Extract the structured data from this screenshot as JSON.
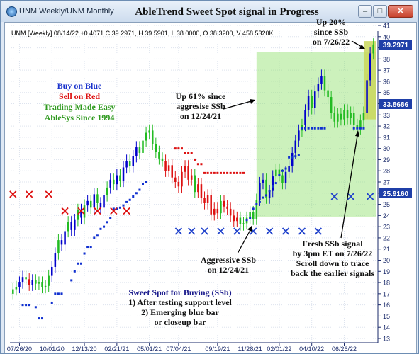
{
  "window": {
    "title": "UNM Weekly/UNM Monthly",
    "minimize_glyph": "–",
    "maximize_glyph": "□",
    "close_glyph": "✕"
  },
  "overlay_title": "AbleTrend Sweet Spot signal in Progress",
  "header_info": "UNM [Weekly] 08/14/22 +0.4071 C 39.2971, H 39.5901, L 38.0000, O 38.3200, V 458.5320K",
  "price_tags": {
    "last": "39.2971",
    "mid": "33.8686",
    "low": "25.9160"
  },
  "price_tag_colors": {
    "last": "#1f3fa8",
    "mid": "#1f3fa8",
    "low": "#1f3fa8"
  },
  "legend_text": {
    "buy": "Buy on Blue",
    "sell": "Sell on Red",
    "easy": "Trading Made Easy",
    "since": "AbleSys Since 1994"
  },
  "annotations": {
    "up61_l1": "Up 61% since",
    "up61_l2": "aggresise SSb",
    "up61_l3": "on 12/24/21",
    "up20_l1": "Up 20%",
    "up20_l2": "since SSb",
    "up20_l3": "on 7/26/22",
    "aggr_l1": "Aggressive SSb",
    "aggr_l2": "on 12/24/21",
    "fresh_l1": "Fresh SSb signal",
    "fresh_l2": "by 3pm ET on 7/26/22",
    "fresh_l3": "Scroll down to trace",
    "fresh_l4": "back the earlier signals",
    "sweet_title": "Sweet Spot for Buying (SSb)",
    "sweet_l1": "1) After testing support level",
    "sweet_l2": "2) Emerging blue bar",
    "sweet_l3": "or closeup bar"
  },
  "colors": {
    "up": "#0000cc",
    "down": "#dd1111",
    "neutral": "#22bb22",
    "stop_blue": "#1030d0",
    "stop_red": "#dd1111",
    "x_red": "#dd1111",
    "x_blue": "#2244cc",
    "highlight": "#8fe06a",
    "highlight_recent": "#c9d75a",
    "legend_blue": "#1a33cc",
    "legend_red": "#dd1111",
    "legend_green": "#2f9a1f"
  },
  "chart_data": {
    "type": "candlestick",
    "ylim": [
      13,
      41
    ],
    "y_ticks": [
      13,
      14,
      15,
      16,
      17,
      18,
      19,
      20,
      21,
      22,
      23,
      24,
      25,
      26,
      27,
      28,
      29,
      30,
      31,
      32,
      33,
      34,
      35,
      36,
      37,
      38,
      39,
      40,
      41
    ],
    "x_ticks": [
      "07/26/20",
      "10/01/20",
      "12/13/20",
      "02/21/21",
      "05/01/21",
      "07/04/21",
      "09/19/21",
      "11/28/21",
      "02/01/22",
      "04/10/22",
      "06/26/22"
    ],
    "x_tick_index": [
      2,
      12,
      22,
      32,
      42,
      51,
      63,
      73,
      82,
      92,
      102
    ],
    "x_count": 112,
    "candles_close": [
      17.4,
      17.6,
      18.0,
      18.5,
      18.3,
      17.8,
      18.2,
      17.9,
      18.0,
      17.6,
      17.7,
      18.6,
      19.4,
      20.6,
      21.8,
      21.4,
      22.6,
      23.4,
      22.7,
      23.6,
      24.5,
      23.8,
      24.9,
      25.3,
      24.7,
      25.9,
      25.1,
      24.7,
      25.8,
      26.5,
      27.2,
      26.8,
      27.6,
      27.1,
      28.3,
      28.9,
      28.4,
      29.3,
      30.1,
      29.6,
      30.7,
      31.4,
      31.6,
      30.4,
      29.7,
      29.1,
      28.9,
      28.0,
      28.5,
      27.4,
      27.0,
      26.6,
      27.9,
      28.4,
      27.2,
      27.6,
      26.1,
      26.8,
      25.6,
      25.1,
      25.8,
      24.1,
      24.6,
      24.2,
      25.3,
      24.8,
      24.6,
      24.0,
      23.5,
      23.8,
      23.2,
      23.3,
      23.8,
      24.3,
      23.7,
      25.4,
      26.9,
      27.2,
      25.6,
      26.2,
      27.5,
      28.1,
      27.6,
      26.9,
      27.9,
      28.4,
      29.6,
      30.7,
      31.6,
      32.1,
      33.4,
      34.7,
      33.6,
      35.1,
      35.8,
      36.5,
      35.2,
      34.6,
      33.2,
      32.4,
      33.1,
      32.6,
      33.4,
      32.7,
      33.2,
      32.1,
      31.8,
      32.5,
      33.2,
      36.1,
      38.5,
      39.3
    ],
    "candles_color": [
      "n",
      "n",
      "u",
      "u",
      "n",
      "d",
      "u",
      "n",
      "n",
      "n",
      "n",
      "n",
      "u",
      "u",
      "n",
      "u",
      "u",
      "n",
      "u",
      "u",
      "n",
      "u",
      "n",
      "u",
      "n",
      "u",
      "n",
      "u",
      "u",
      "n",
      "u",
      "n",
      "u",
      "n",
      "u",
      "u",
      "n",
      "u",
      "u",
      "n",
      "n",
      "n",
      "n",
      "n",
      "n",
      "n",
      "n",
      "d",
      "d",
      "d",
      "d",
      "d",
      "d",
      "d",
      "d",
      "d",
      "n",
      "d",
      "d",
      "d",
      "d",
      "d",
      "d",
      "d",
      "n",
      "d",
      "d",
      "d",
      "d",
      "d",
      "n",
      "n",
      "n",
      "n",
      "n",
      "n",
      "u",
      "u",
      "n",
      "u",
      "u",
      "n",
      "n",
      "n",
      "u",
      "u",
      "u",
      "u",
      "u",
      "n",
      "u",
      "u",
      "n",
      "u",
      "u",
      "u",
      "n",
      "n",
      "n",
      "n",
      "n",
      "n",
      "n",
      "n",
      "n",
      "n",
      "n",
      "n",
      "n",
      "u",
      "u",
      "n"
    ],
    "stops_blue": [
      {
        "i": 3,
        "y": 16.0
      },
      {
        "i": 4,
        "y": 16.0
      },
      {
        "i": 5,
        "y": 16.0
      },
      {
        "i": 7,
        "y": 15.8
      },
      {
        "i": 8,
        "y": 14.8
      },
      {
        "i": 9,
        "y": 14.8
      },
      {
        "i": 12,
        "y": 16.2
      },
      {
        "i": 13,
        "y": 17.0
      },
      {
        "i": 14,
        "y": 17.0
      },
      {
        "i": 15,
        "y": 17.0
      },
      {
        "i": 18,
        "y": 18.2
      },
      {
        "i": 19,
        "y": 19.0
      },
      {
        "i": 20,
        "y": 19.7
      },
      {
        "i": 21,
        "y": 19.7
      },
      {
        "i": 22,
        "y": 20.6
      },
      {
        "i": 23,
        "y": 21.2
      },
      {
        "i": 24,
        "y": 21.2
      },
      {
        "i": 25,
        "y": 22.0
      },
      {
        "i": 26,
        "y": 22.2
      },
      {
        "i": 27,
        "y": 22.8
      },
      {
        "i": 28,
        "y": 23.0
      },
      {
        "i": 29,
        "y": 23.4
      },
      {
        "i": 30,
        "y": 23.8
      },
      {
        "i": 31,
        "y": 24.6
      },
      {
        "i": 32,
        "y": 24.6
      },
      {
        "i": 33,
        "y": 24.7
      },
      {
        "i": 34,
        "y": 24.9
      },
      {
        "i": 35,
        "y": 25.2
      },
      {
        "i": 36,
        "y": 25.4
      },
      {
        "i": 37,
        "y": 25.7
      },
      {
        "i": 38,
        "y": 26.0
      },
      {
        "i": 39,
        "y": 26.3
      },
      {
        "i": 40,
        "y": 26.8
      },
      {
        "i": 41,
        "y": 27.0
      },
      {
        "i": 72,
        "y": 23.6
      },
      {
        "i": 73,
        "y": 23.8
      },
      {
        "i": 74,
        "y": 24.6
      },
      {
        "i": 75,
        "y": 25.0
      },
      {
        "i": 76,
        "y": 25.2
      },
      {
        "i": 77,
        "y": 25.6
      },
      {
        "i": 78,
        "y": 25.8
      },
      {
        "i": 79,
        "y": 26.2
      },
      {
        "i": 80,
        "y": 26.6
      },
      {
        "i": 81,
        "y": 26.9
      },
      {
        "i": 82,
        "y": 27.6
      },
      {
        "i": 83,
        "y": 28.0
      },
      {
        "i": 84,
        "y": 28.2
      },
      {
        "i": 85,
        "y": 29.2
      },
      {
        "i": 86,
        "y": 29.2
      },
      {
        "i": 87,
        "y": 29.3
      },
      {
        "i": 88,
        "y": 29.4
      },
      {
        "i": 89,
        "y": 31.8
      },
      {
        "i": 90,
        "y": 31.8
      },
      {
        "i": 91,
        "y": 31.8
      },
      {
        "i": 92,
        "y": 31.8
      },
      {
        "i": 93,
        "y": 31.8
      },
      {
        "i": 94,
        "y": 31.8
      },
      {
        "i": 95,
        "y": 31.8
      },
      {
        "i": 96,
        "y": 31.8
      },
      {
        "i": 105,
        "y": 31.8
      },
      {
        "i": 106,
        "y": 31.8
      },
      {
        "i": 107,
        "y": 31.8
      },
      {
        "i": 108,
        "y": 31.8
      }
    ],
    "stops_red": [
      {
        "i": 50,
        "y": 30.0
      },
      {
        "i": 51,
        "y": 30.0
      },
      {
        "i": 52,
        "y": 30.0
      },
      {
        "i": 53,
        "y": 29.6
      },
      {
        "i": 54,
        "y": 29.6
      },
      {
        "i": 55,
        "y": 29.6
      },
      {
        "i": 56,
        "y": 29.0
      },
      {
        "i": 57,
        "y": 28.6
      },
      {
        "i": 58,
        "y": 28.6
      },
      {
        "i": 59,
        "y": 27.8
      },
      {
        "i": 60,
        "y": 27.8
      },
      {
        "i": 61,
        "y": 27.8
      },
      {
        "i": 62,
        "y": 27.8
      },
      {
        "i": 63,
        "y": 27.8
      },
      {
        "i": 64,
        "y": 27.8
      },
      {
        "i": 65,
        "y": 27.8
      },
      {
        "i": 66,
        "y": 27.8
      },
      {
        "i": 67,
        "y": 27.8
      },
      {
        "i": 68,
        "y": 27.8
      },
      {
        "i": 69,
        "y": 27.8
      },
      {
        "i": 70,
        "y": 27.8
      },
      {
        "i": 71,
        "y": 27.8
      }
    ],
    "marks_red_x": [
      {
        "i": 0,
        "y": 25.9
      },
      {
        "i": 5,
        "y": 25.9
      },
      {
        "i": 11,
        "y": 25.9
      },
      {
        "i": 16,
        "y": 24.4
      },
      {
        "i": 21,
        "y": 24.4
      },
      {
        "i": 26,
        "y": 24.4
      },
      {
        "i": 31,
        "y": 24.4
      },
      {
        "i": 35,
        "y": 24.4
      }
    ],
    "marks_blue_x": [
      {
        "i": 51,
        "y": 22.6
      },
      {
        "i": 55,
        "y": 22.6
      },
      {
        "i": 59,
        "y": 22.6
      },
      {
        "i": 64,
        "y": 22.6
      },
      {
        "i": 69,
        "y": 22.6
      },
      {
        "i": 74,
        "y": 22.6
      },
      {
        "i": 79,
        "y": 22.6
      },
      {
        "i": 84,
        "y": 22.6
      },
      {
        "i": 89,
        "y": 22.6
      },
      {
        "i": 94,
        "y": 22.6
      },
      {
        "i": 99,
        "y": 25.7
      },
      {
        "i": 104,
        "y": 25.7
      },
      {
        "i": 110,
        "y": 25.7
      }
    ],
    "highlight_range": {
      "x_start": 75,
      "x_end": 111,
      "y_low": 23.9,
      "y_high": 38.6
    },
    "highlight_recent_range": {
      "x_start": 108,
      "x_end": 111,
      "y_low": 32.6,
      "y_high": 39.6
    }
  }
}
